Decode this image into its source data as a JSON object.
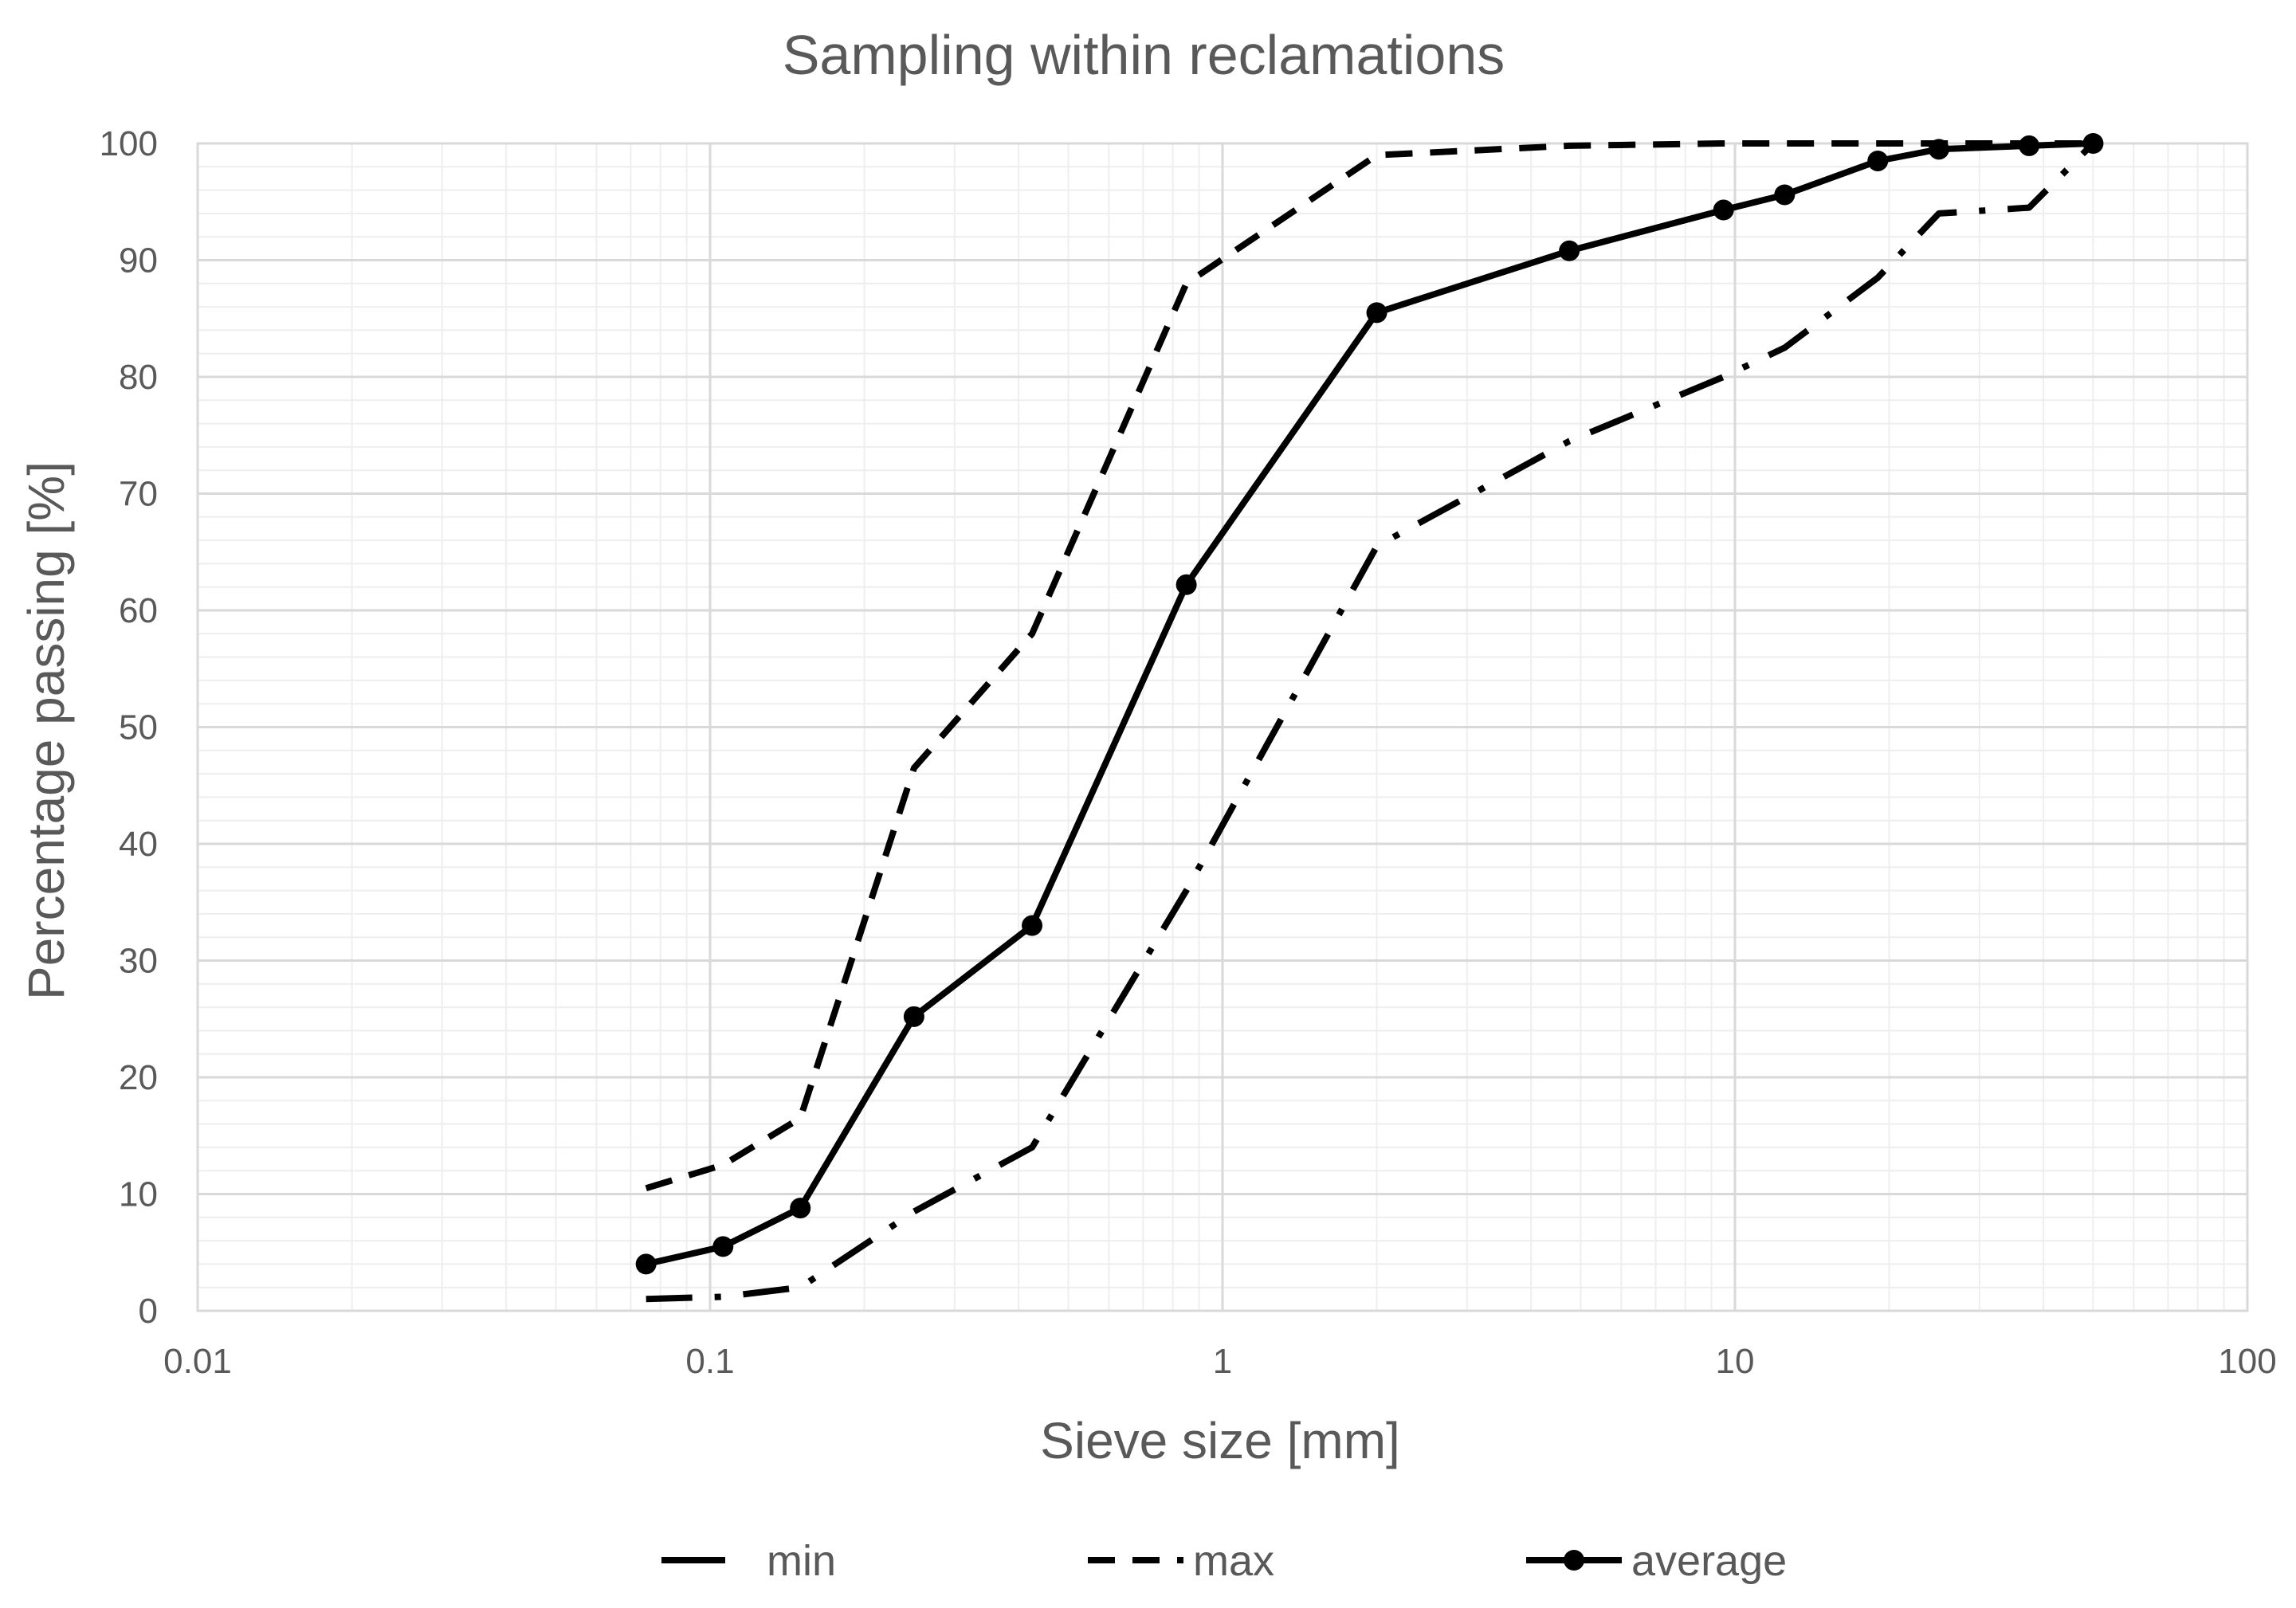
{
  "chart_data": {
    "type": "line",
    "title": "Sampling within reclamations",
    "xlabel": "Sieve size [mm]",
    "ylabel": "Percentage passing [%]",
    "xscale": "log",
    "xlim": [
      0.01,
      100
    ],
    "ylim": [
      0,
      100
    ],
    "grid": true,
    "legend_position": "bottom",
    "x_ticks": [
      0.01,
      0.1,
      1,
      10,
      100
    ],
    "x_tick_labels": [
      "0.01",
      "0.1",
      "1",
      "10",
      "100"
    ],
    "y_ticks": [
      0,
      10,
      20,
      30,
      40,
      50,
      60,
      70,
      80,
      90,
      100
    ],
    "y_tick_labels": [
      "0",
      "10",
      "20",
      "30",
      "40",
      "50",
      "60",
      "70",
      "80",
      "90",
      "100"
    ],
    "series": [
      {
        "name": "min",
        "style": "dash-dot",
        "markers": false,
        "x": [
          0.075,
          0.106,
          0.15,
          0.25,
          0.425,
          0.85,
          2,
          4.75,
          9.5,
          12.5,
          19,
          25,
          37.5,
          50
        ],
        "y": [
          1,
          1.2,
          2,
          8.5,
          14,
          36,
          65.5,
          74.5,
          80,
          82.5,
          88.5,
          94,
          94.5,
          100
        ]
      },
      {
        "name": "max",
        "style": "dash",
        "markers": false,
        "x": [
          0.075,
          0.106,
          0.15,
          0.25,
          0.425,
          0.85,
          2,
          4.75,
          9.5,
          12.5,
          19,
          25,
          37.5,
          50
        ],
        "y": [
          10.5,
          12.5,
          16.5,
          46.5,
          58,
          88,
          99,
          99.8,
          100,
          100,
          100,
          100,
          100,
          100
        ]
      },
      {
        "name": "average",
        "style": "solid",
        "markers": true,
        "x": [
          0.075,
          0.106,
          0.15,
          0.25,
          0.425,
          0.85,
          2,
          4.75,
          9.5,
          12.5,
          19,
          25,
          37.5,
          50
        ],
        "y": [
          4,
          5.5,
          8.8,
          25.2,
          33,
          62.2,
          85.5,
          90.8,
          94.3,
          95.6,
          98.5,
          99.5,
          99.8,
          100
        ]
      }
    ]
  }
}
